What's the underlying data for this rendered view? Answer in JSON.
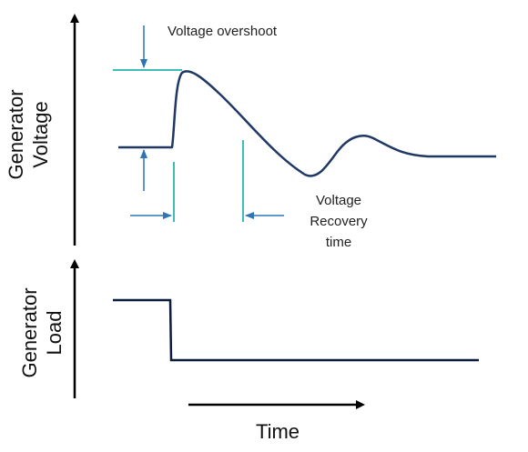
{
  "labels": {
    "voltage_overshoot": "Voltage overshoot",
    "recovery_line1": "Voltage",
    "recovery_line2": "Recovery",
    "recovery_line3": "time",
    "generator_voltage_line1": "Generator",
    "generator_voltage_line2": "Voltage",
    "generator_load_line1": "Generator",
    "generator_load_line2": "Load",
    "time": "Time"
  },
  "colors": {
    "axis": "#000000",
    "voltage_trace": "#1f3864",
    "load_trace": "#0d1b3d",
    "annotation_arrows": "#2e75b6",
    "guide_lines": "#00a99d",
    "text": "#1f1f1f"
  }
}
